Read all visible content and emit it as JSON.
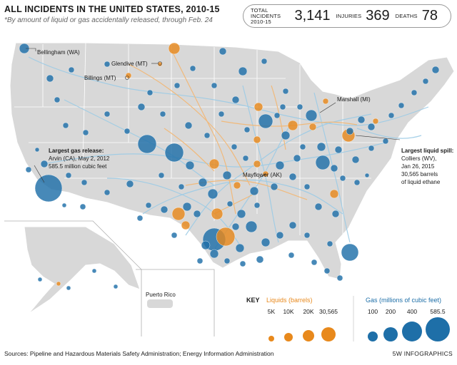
{
  "header": {
    "title": "ALL INCIDENTS IN THE UNITED STATES, 2010-15",
    "subtitle": "*By amount of liquid or gas accidentally released, through Feb. 24"
  },
  "stats": {
    "total_label": "TOTAL INCIDENTS 2010-15",
    "total_value": "3,141",
    "injuries_label": "INJURIES",
    "injuries_value": "369",
    "deaths_label": "DEATHS",
    "deaths_value": "78"
  },
  "callouts": {
    "bellingham": "Bellingham (WA)",
    "glendive": "Glendive (MT)",
    "billings": "Billings (MT)",
    "marshall": "Marshall (MI)",
    "mayflower": "Mayflower (AK)",
    "gas_line1": "Largest gas release:",
    "gas_line2": "Arvin (CA), May 2, 2012",
    "gas_line3": "585.5 million cubic feet",
    "liquid_line1": "Largest liquid spill:",
    "liquid_line2": "Colliers (WV),",
    "liquid_line3": "Jan 26, 2015",
    "liquid_line4": "30,565 barrels",
    "liquid_line5": "of liquid ethane",
    "puerto_rico": "Puerto Rico"
  },
  "key": {
    "key_label": "KEY",
    "liquids_title": "Liquids (barrels)",
    "gas_title": "Gas (millions of cubic feet)",
    "liquids": [
      "5K",
      "10K",
      "20K",
      "30,565"
    ],
    "gas": [
      "100",
      "200",
      "400",
      "585.5"
    ]
  },
  "colors": {
    "liquid": "#e8891c",
    "gas": "#1e6fa8",
    "land": "#d8d8d8",
    "pipeline_gas": "#9ccbe6",
    "pipeline_liquid": "#f2b877"
  },
  "footer": {
    "sources": "Sources: Pipeline and Hazardous Materials Safety Administration; Energy Information Administration",
    "credit": "5W INFOGRAPHICS"
  }
}
